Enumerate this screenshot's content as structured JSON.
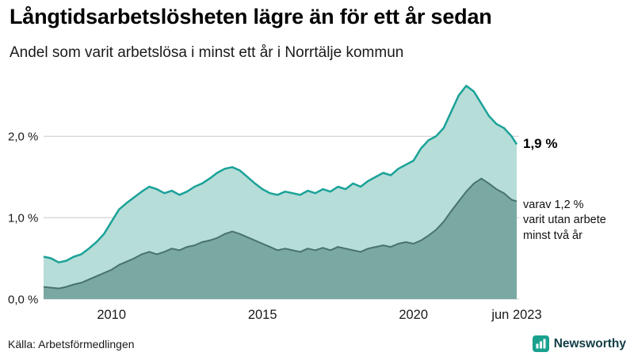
{
  "header": {
    "title": "Långtidsarbetslösheten lägre än för ett år sedan",
    "subtitle": "Andel som varit arbetslösa i minst ett år i Norrtälje kommun"
  },
  "chart_data": {
    "type": "area",
    "title": "Långtidsarbetslösheten lägre än för ett år sedan",
    "subtitle": "Andel som varit arbetslösa i minst ett år i Norrtälje kommun",
    "unit": "%",
    "xlim": [
      2007.75,
      2023.5
    ],
    "ylim": [
      0,
      2.75
    ],
    "grid": "horizontal",
    "legend_position": "none",
    "y_grid": [
      0,
      1,
      2
    ],
    "y_tick_labels": [
      "0,0 %",
      "1,0 %",
      "2,0 %"
    ],
    "x_ticks": [
      {
        "label": "2010",
        "year": 2010
      },
      {
        "label": "2015",
        "year": 2015
      },
      {
        "label": "2020",
        "year": 2020
      },
      {
        "label": "jun 2023",
        "year": 2023.42
      }
    ],
    "x": [
      2007.75,
      2008,
      2008.25,
      2008.5,
      2008.75,
      2009,
      2009.25,
      2009.5,
      2009.75,
      2010,
      2010.25,
      2010.5,
      2010.75,
      2011,
      2011.25,
      2011.5,
      2011.75,
      2012,
      2012.25,
      2012.5,
      2012.75,
      2013,
      2013.25,
      2013.5,
      2013.75,
      2014,
      2014.25,
      2014.5,
      2014.75,
      2015,
      2015.25,
      2015.5,
      2015.75,
      2016,
      2016.25,
      2016.5,
      2016.75,
      2017,
      2017.25,
      2017.5,
      2017.75,
      2018,
      2018.25,
      2018.5,
      2018.75,
      2019,
      2019.25,
      2019.5,
      2019.75,
      2020,
      2020.25,
      2020.5,
      2020.75,
      2021,
      2021.25,
      2021.5,
      2021.75,
      2022,
      2022.25,
      2022.5,
      2022.75,
      2023,
      2023.25,
      2023.42
    ],
    "series": [
      {
        "name": "andel-arbetslosa-minst-ett-ar",
        "label": "Andel som varit arbetslösa i minst ett år",
        "fill": "#b7ddd8",
        "stroke": "#1aa298",
        "stroke_width": 2.5,
        "end_value": 1.9,
        "values": [
          0.52,
          0.5,
          0.45,
          0.47,
          0.52,
          0.55,
          0.62,
          0.7,
          0.8,
          0.95,
          1.1,
          1.18,
          1.25,
          1.32,
          1.38,
          1.35,
          1.3,
          1.33,
          1.28,
          1.32,
          1.38,
          1.42,
          1.48,
          1.55,
          1.6,
          1.62,
          1.58,
          1.5,
          1.42,
          1.35,
          1.3,
          1.28,
          1.32,
          1.3,
          1.28,
          1.33,
          1.3,
          1.35,
          1.32,
          1.38,
          1.35,
          1.42,
          1.38,
          1.45,
          1.5,
          1.55,
          1.52,
          1.6,
          1.65,
          1.7,
          1.85,
          1.95,
          2.0,
          2.1,
          2.3,
          2.5,
          2.62,
          2.55,
          2.4,
          2.25,
          2.15,
          2.1,
          2.0,
          1.9
        ]
      },
      {
        "name": "andel-utan-arbete-minst-tva-ar",
        "label": "varav utan arbete minst två år",
        "fill": "#7aa8a2",
        "stroke": "#48736d",
        "stroke_width": 2,
        "end_value": 1.2,
        "values": [
          0.15,
          0.14,
          0.13,
          0.15,
          0.18,
          0.2,
          0.24,
          0.28,
          0.32,
          0.36,
          0.42,
          0.46,
          0.5,
          0.55,
          0.58,
          0.55,
          0.58,
          0.62,
          0.6,
          0.64,
          0.66,
          0.7,
          0.72,
          0.75,
          0.8,
          0.83,
          0.8,
          0.76,
          0.72,
          0.68,
          0.64,
          0.6,
          0.62,
          0.6,
          0.58,
          0.62,
          0.6,
          0.63,
          0.6,
          0.64,
          0.62,
          0.6,
          0.58,
          0.62,
          0.64,
          0.66,
          0.64,
          0.68,
          0.7,
          0.68,
          0.72,
          0.78,
          0.85,
          0.95,
          1.08,
          1.2,
          1.32,
          1.42,
          1.48,
          1.42,
          1.35,
          1.3,
          1.22,
          1.2
        ]
      }
    ],
    "colors": {
      "accent_teal": "#1aa298",
      "light_fill": "#b7ddd8",
      "dark_fill": "#7aa8a2",
      "dark_stroke": "#48736d",
      "gridline": "#c9c9c9"
    }
  },
  "annotations": {
    "end_value": "1,9 %",
    "secondary_lines": [
      "varav 1,2 %",
      "varit utan arbete",
      "minst två år"
    ]
  },
  "footer": {
    "source": "Källa: Arbetsförmedlingen",
    "brand": "Newsworthy"
  }
}
